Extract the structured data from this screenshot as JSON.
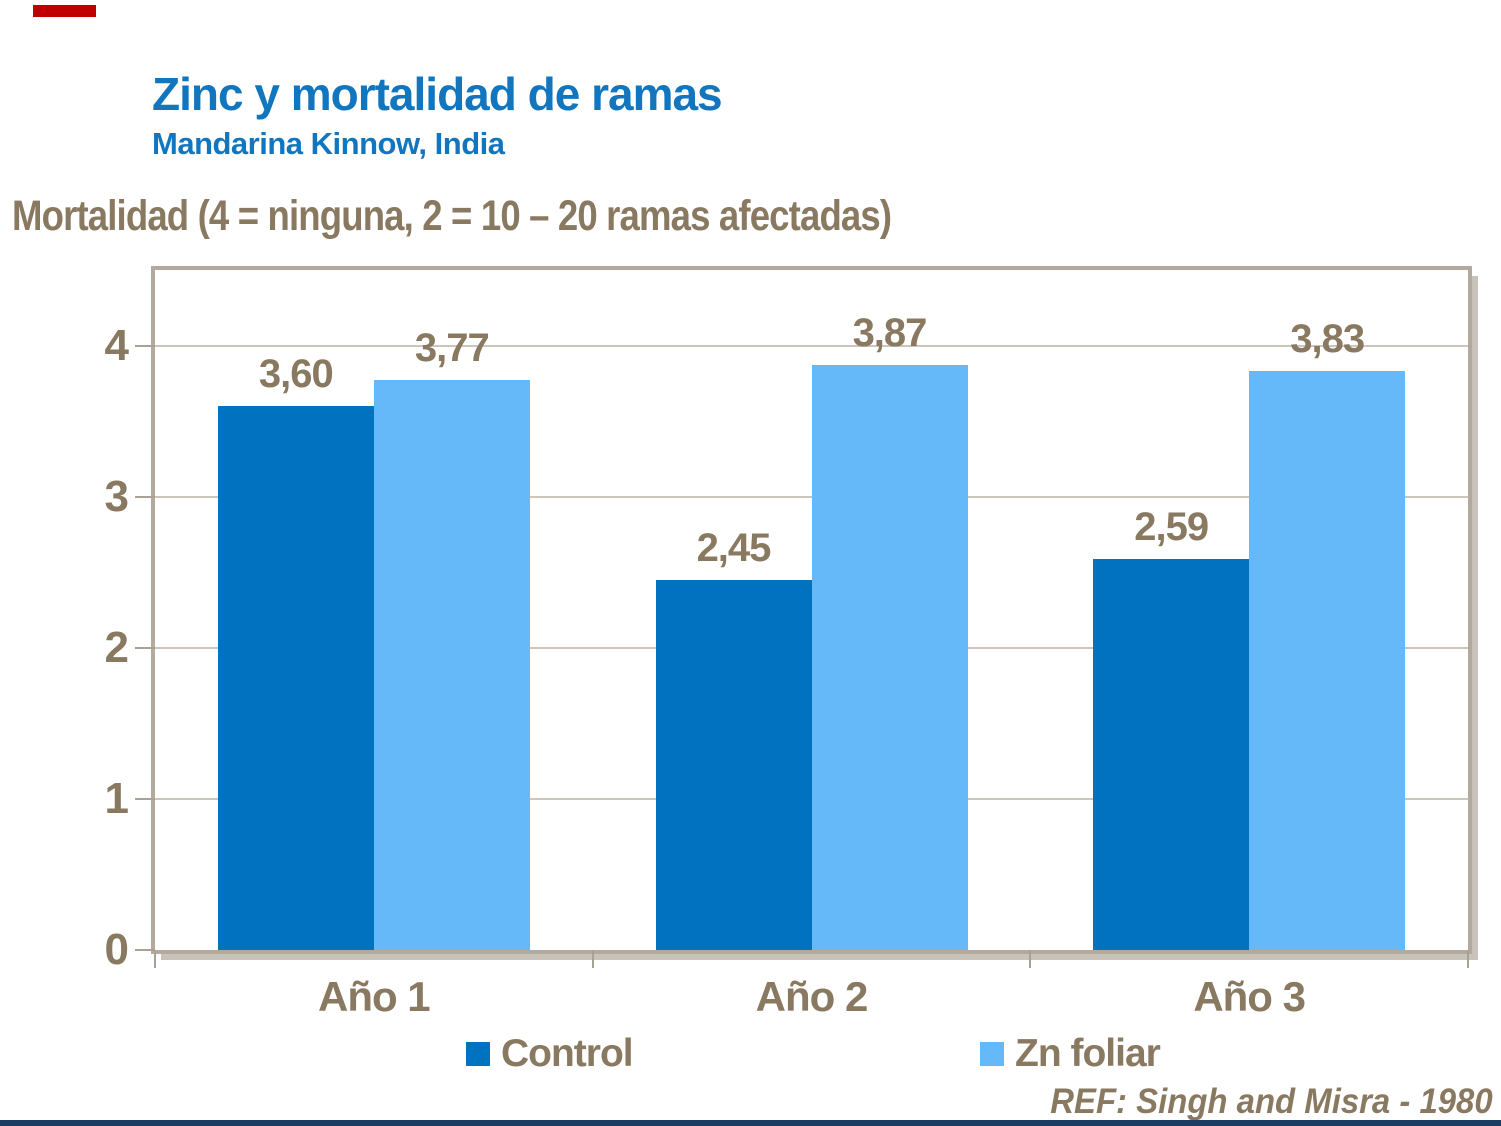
{
  "slide": {
    "title": "Zinc y mortalidad de ramas",
    "subtitle": "Mandarina Kinnow, India",
    "axis_note": "Mortalidad (4 = ninguna, 2 = 10 – 20 ramas afectadas)",
    "reference": "REF: Singh and Misra - 1980"
  },
  "colors": {
    "title_blue": "#1276BF",
    "text_brown": "#8A7961",
    "control_blue": "#0072BF",
    "zn_blue": "#66B9F8",
    "frame": "#B2A99F",
    "gridline": "#CCC5BC",
    "accent_red": "#C00000",
    "bottom_bar_navy": "#1B3C63"
  },
  "chart_data": {
    "type": "bar",
    "title": "Zinc y mortalidad de ramas",
    "subtitle": "Mandarina Kinnow, India",
    "categories": [
      "Año 1",
      "Año 2",
      "Año 3"
    ],
    "series": [
      {
        "name": "Control",
        "color_key": "control_blue",
        "values": [
          3.6,
          2.45,
          2.59
        ],
        "labels": [
          "3,60",
          "2,45",
          "2,59"
        ]
      },
      {
        "name": "Zn foliar",
        "color_key": "zn_blue",
        "values": [
          3.77,
          3.87,
          3.83
        ],
        "labels": [
          "3,77",
          "3,87",
          "3,83"
        ]
      }
    ],
    "xlabel": "",
    "ylabel": "Mortalidad (4 = ninguna, 2 = 10 – 20 ramas afectadas)",
    "ylim": [
      0,
      4.5
    ],
    "yticks": [
      0,
      1,
      2,
      3,
      4
    ],
    "grid": true,
    "legend_position": "bottom"
  },
  "legend": {
    "items": [
      {
        "label": "Control",
        "color_key": "control_blue"
      },
      {
        "label": "Zn foliar",
        "color_key": "zn_blue"
      }
    ]
  }
}
